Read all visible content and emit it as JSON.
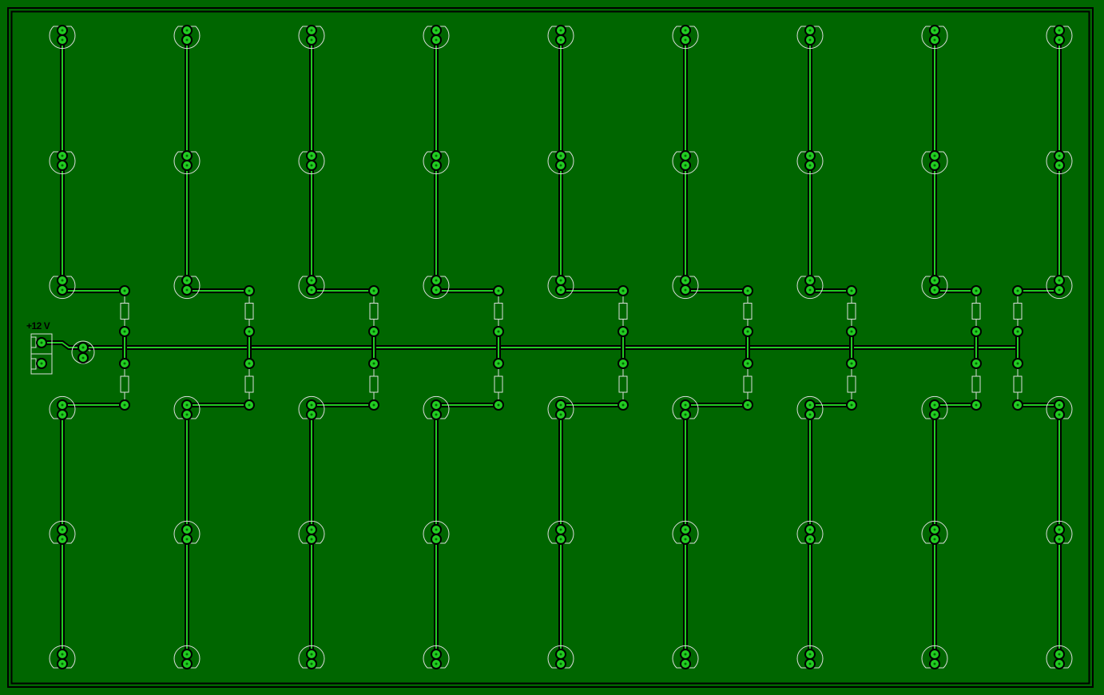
{
  "board": {
    "power_label": "+12 V",
    "colors": {
      "board": "#006600",
      "copper": "#22cc22",
      "isolation": "#000000",
      "silkscreen": "#dddddd"
    }
  }
}
